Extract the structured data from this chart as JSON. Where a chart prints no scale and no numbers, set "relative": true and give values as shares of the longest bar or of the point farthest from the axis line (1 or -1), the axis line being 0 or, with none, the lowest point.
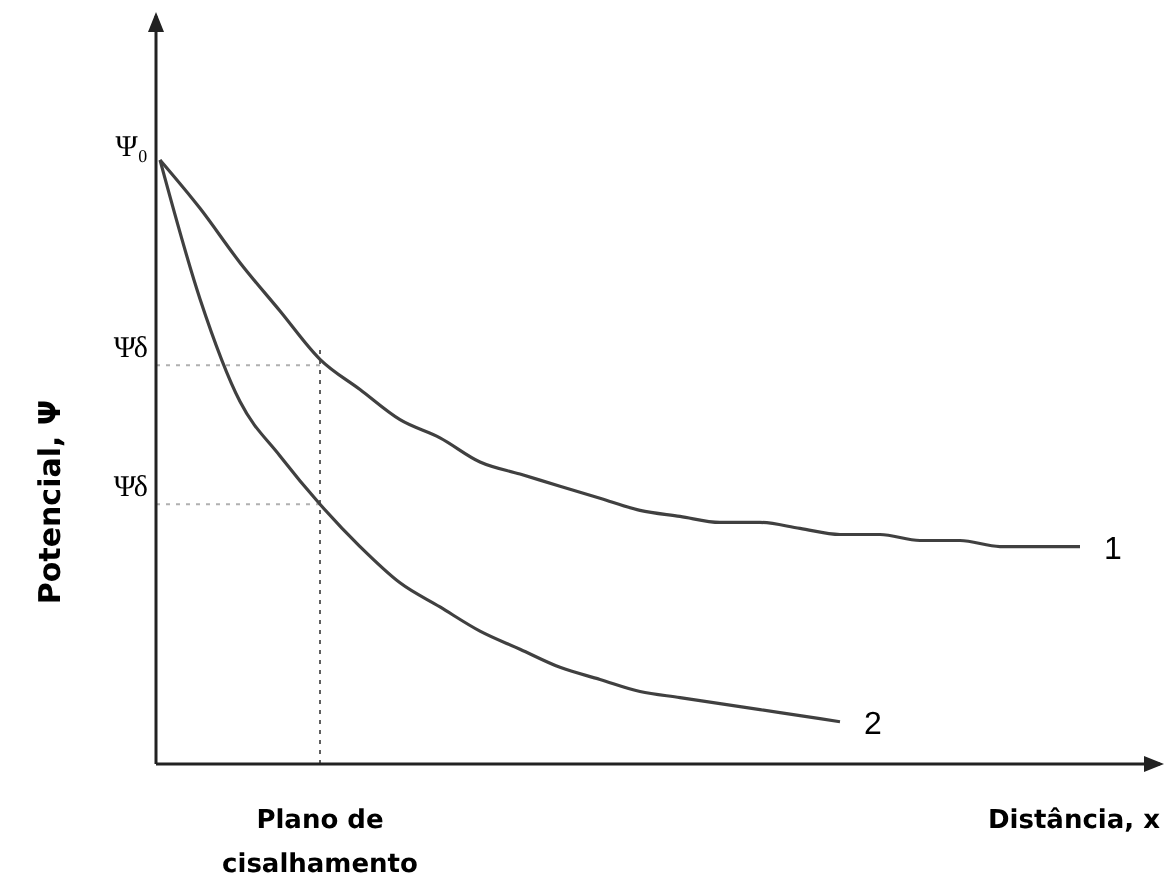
{
  "chart_data": {
    "type": "line",
    "relative": true,
    "xlabel": "Distância, x",
    "ylabel": "Potencial, Ψ",
    "categories": [
      null,
      null,
      null,
      null,
      null,
      null,
      null,
      null,
      null,
      null,
      null,
      null,
      null,
      null,
      null,
      null,
      null,
      null,
      null,
      null,
      null,
      null,
      null,
      null
    ],
    "series": [
      {
        "name": "1",
        "color": "#404040",
        "values": [
          1.0,
          0.92,
          0.83,
          0.75,
          0.67,
          0.62,
          0.57,
          0.54,
          0.5,
          0.48,
          0.46,
          0.44,
          0.42,
          0.41,
          0.4,
          0.4,
          0.39,
          0.38,
          0.38,
          0.37,
          0.37,
          0.36,
          0.36,
          0.36
        ]
      },
      {
        "name": "2",
        "color": "#404040",
        "values": [
          1.0,
          0.77,
          0.6,
          0.51,
          0.43,
          0.36,
          0.3,
          0.26,
          0.22,
          0.19,
          0.16,
          0.14,
          0.12,
          0.11,
          0.1,
          0.09,
          0.08,
          0.07,
          null,
          null,
          null,
          null,
          null,
          null
        ]
      }
    ],
    "ref_lines": [
      {
        "axis": "y",
        "value": 0.66,
        "label": "Ψδ",
        "line_style": "dotted",
        "color": "#b0b0b0"
      },
      {
        "axis": "y",
        "value": 0.43,
        "label": "Ψδ",
        "line_style": "dotted",
        "color": "#b0b0b0"
      }
    ],
    "annotations": [
      "Ψ₀",
      "Plano de cisalhamento"
    ],
    "grid": false,
    "marker": "none",
    "line_style": "solid"
  }
}
